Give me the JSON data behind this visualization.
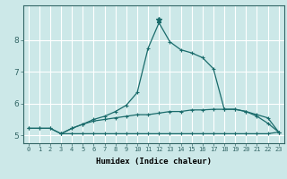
{
  "xlabel": "Humidex (Indice chaleur)",
  "background_color": "#cce8e8",
  "grid_color": "#ffffff",
  "line_color": "#1a6b6b",
  "xlim": [
    -0.5,
    23.5
  ],
  "ylim": [
    4.75,
    9.1
  ],
  "yticks": [
    5,
    6,
    7,
    8
  ],
  "xticks": [
    0,
    1,
    2,
    3,
    4,
    5,
    6,
    7,
    8,
    9,
    10,
    11,
    12,
    13,
    14,
    15,
    16,
    17,
    18,
    19,
    20,
    21,
    22,
    23
  ],
  "series1_x": [
    0,
    1,
    2,
    3,
    4,
    5,
    6,
    7,
    8,
    9,
    10,
    11,
    12,
    13,
    14,
    15,
    16,
    17,
    18,
    19,
    20,
    21,
    22,
    23
  ],
  "series1_y": [
    5.22,
    5.22,
    5.22,
    5.05,
    5.22,
    5.35,
    5.45,
    5.5,
    5.55,
    5.6,
    5.65,
    5.65,
    5.7,
    5.75,
    5.75,
    5.8,
    5.8,
    5.82,
    5.82,
    5.82,
    5.75,
    5.65,
    5.55,
    5.1
  ],
  "series2_x": [
    0,
    1,
    2,
    3,
    4,
    5,
    6,
    7,
    8,
    9,
    10,
    11,
    12,
    13,
    14,
    15,
    16,
    17,
    18,
    19,
    20,
    21,
    22,
    23
  ],
  "series2_y": [
    5.22,
    5.22,
    5.22,
    5.05,
    5.22,
    5.35,
    5.5,
    5.6,
    5.75,
    5.95,
    6.35,
    7.75,
    8.55,
    7.95,
    7.7,
    7.6,
    7.45,
    7.1,
    5.82,
    5.82,
    5.75,
    5.6,
    5.38,
    5.1
  ],
  "series3_x": [
    3,
    4,
    5,
    6,
    7,
    8,
    9,
    10,
    11,
    12,
    13,
    14,
    15,
    16,
    17,
    18,
    19,
    20,
    21,
    22,
    23
  ],
  "series3_y": [
    5.05,
    5.05,
    5.05,
    5.05,
    5.05,
    5.05,
    5.05,
    5.05,
    5.05,
    5.05,
    5.05,
    5.05,
    5.05,
    5.05,
    5.05,
    5.05,
    5.05,
    5.05,
    5.05,
    5.05,
    5.1
  ],
  "peak_x": 12,
  "peak_y": 8.65
}
